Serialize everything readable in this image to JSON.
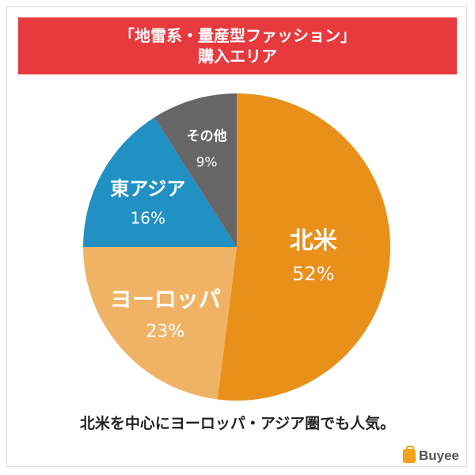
{
  "header": {
    "title_line1": "「地雷系・量産型ファッション」",
    "title_line2": "購入エリア"
  },
  "chart_data": {
    "type": "pie",
    "start_angle_deg": 0,
    "direction": "clockwise",
    "slices": [
      {
        "label": "北米",
        "value": 52,
        "value_label": "52%",
        "color": "#e8901a"
      },
      {
        "label": "ヨーロッパ",
        "value": 23,
        "value_label": "23%",
        "color": "#f0b366"
      },
      {
        "label": "東アジア",
        "value": 16,
        "value_label": "16%",
        "color": "#2190c2"
      },
      {
        "label": "その他",
        "value": 9,
        "value_label": "9%",
        "color": "#666666"
      }
    ]
  },
  "caption": "北米を中心にヨーロッパ・アジア圏でも人気。",
  "brand": {
    "name": "Buyee",
    "icon": "shopping-bag-icon",
    "color": "#f2a21b"
  }
}
